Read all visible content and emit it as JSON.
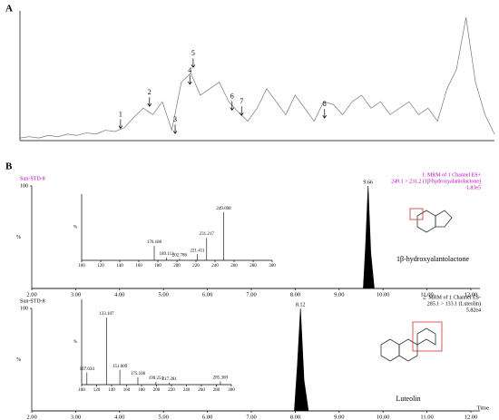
{
  "chart_data": [
    {
      "type": "line",
      "panel": "A",
      "x": [
        0,
        2,
        4,
        6,
        8,
        10,
        12,
        14,
        16,
        18,
        20,
        22,
        24,
        26,
        28,
        30,
        32,
        34,
        36,
        38,
        40,
        42,
        44,
        46,
        48,
        50,
        52,
        54,
        56,
        58,
        60,
        62,
        64,
        66,
        68,
        70,
        72,
        74,
        76,
        78,
        80,
        82,
        84,
        86,
        88,
        90,
        92,
        94,
        96,
        98,
        100
      ],
      "values": [
        2,
        3,
        2,
        4,
        3,
        5,
        4,
        6,
        5,
        8,
        7,
        10,
        18,
        25,
        20,
        30,
        8,
        45,
        52,
        35,
        40,
        45,
        30,
        22,
        15,
        25,
        40,
        30,
        20,
        35,
        25,
        15,
        30,
        28,
        20,
        30,
        35,
        25,
        30,
        20,
        25,
        30,
        20,
        25,
        15,
        40,
        55,
        95,
        45,
        20,
        5
      ],
      "color": "#777777",
      "xlim": [
        0,
        100
      ],
      "ylim": [
        0,
        100
      ],
      "annotations": [
        {
          "text": "1",
          "x": 21.2,
          "y": 8
        },
        {
          "text": "2",
          "x": 27.3,
          "y": 25
        },
        {
          "text": "3",
          "x": 32.7,
          "y": 4
        },
        {
          "text": "4",
          "x": 35.8,
          "y": 42
        },
        {
          "text": "5",
          "x": 36.5,
          "y": 55
        },
        {
          "text": "6",
          "x": 44.7,
          "y": 22
        },
        {
          "text": "7",
          "x": 46.7,
          "y": 18
        },
        {
          "text": "8",
          "x": 64.2,
          "y": 16
        }
      ]
    },
    {
      "type": "area",
      "panel": "B",
      "sample": "Sun-STD-8",
      "header": [
        "1: MRM of 1 Channel ES+",
        "249.1 > 231.2 (1β-hydroxyalantolactone)",
        "1.83e5"
      ],
      "compound": "1β-hydroxyalantolactone",
      "peak_time": 9.66,
      "ylabel": "%",
      "x": [
        2,
        9.55,
        9.6,
        9.66,
        9.72,
        9.8,
        12
      ],
      "values": [
        0,
        0,
        40,
        100,
        35,
        0,
        0
      ],
      "color": "#000000",
      "xlim": [
        2,
        12
      ],
      "ylim": [
        0,
        100
      ],
      "yticks": [
        100
      ],
      "xticks": [
        {
          "value": 2,
          "label": "2.00"
        },
        {
          "value": 3,
          "label": "3.00"
        },
        {
          "value": 4,
          "label": "4.00"
        },
        {
          "value": 5,
          "label": "5.00"
        },
        {
          "value": 6,
          "label": "6.00"
        },
        {
          "value": 7,
          "label": "7.00"
        },
        {
          "value": 8,
          "label": "8.00"
        },
        {
          "value": 9,
          "label": "9.00"
        },
        {
          "value": 10,
          "label": "10.00"
        },
        {
          "value": 11,
          "label": "11.00"
        },
        {
          "value": 12,
          "label": "12.00"
        }
      ],
      "inset": {
        "type": "bar",
        "ylabel": "%",
        "x": [
          176.186,
          189.112,
          202.786,
          221.411,
          231.217,
          249.098
        ],
        "values": [
          30,
          6,
          3,
          13,
          47,
          100
        ],
        "xlim": [
          100,
          300
        ],
        "ylim": [
          0,
          100
        ],
        "xticks": [
          100,
          120,
          140,
          160,
          180,
          200,
          220,
          240,
          260,
          280,
          300
        ]
      }
    },
    {
      "type": "area",
      "panel": null,
      "sample": "Sun-STD-8",
      "header": [
        "2: MRM of 1 Channel ES-",
        "285.1 > 133.1 (Luteolin)",
        "5.82e4"
      ],
      "compound": "Luteolin",
      "peak_time": 8.12,
      "ylabel": "%",
      "xlabel": "Time",
      "x": [
        2,
        7.98,
        8.05,
        8.12,
        8.2,
        8.3,
        12
      ],
      "values": [
        0,
        0,
        45,
        100,
        30,
        0,
        0
      ],
      "color": "#000000",
      "xlim": [
        2,
        12
      ],
      "ylim": [
        0,
        100
      ],
      "yticks": [
        100
      ],
      "xticks": [
        {
          "value": 2,
          "label": "2.00"
        },
        {
          "value": 3,
          "label": "3.00"
        },
        {
          "value": 4,
          "label": "4.00"
        },
        {
          "value": 5,
          "label": "5.00"
        },
        {
          "value": 6,
          "label": "6.00"
        },
        {
          "value": 7,
          "label": "7.00"
        },
        {
          "value": 8,
          "label": "8.00"
        },
        {
          "value": 9,
          "label": "9.00"
        },
        {
          "value": 10,
          "label": "10.00"
        },
        {
          "value": 11,
          "label": "11.00"
        },
        {
          "value": 12,
          "label": "12.00"
        }
      ],
      "inset": {
        "type": "bar",
        "ylabel": "%",
        "x": [
          107.034,
          133.107,
          151.009,
          175.106,
          199.254,
          217.281,
          285.369
        ],
        "values": [
          18,
          100,
          22,
          11,
          4,
          3,
          5
        ],
        "xlim": [
          100,
          300
        ],
        "ylim": [
          0,
          100
        ],
        "xticks": [
          100,
          120,
          140,
          160,
          180,
          200,
          220,
          240,
          260,
          280,
          300
        ]
      }
    }
  ]
}
